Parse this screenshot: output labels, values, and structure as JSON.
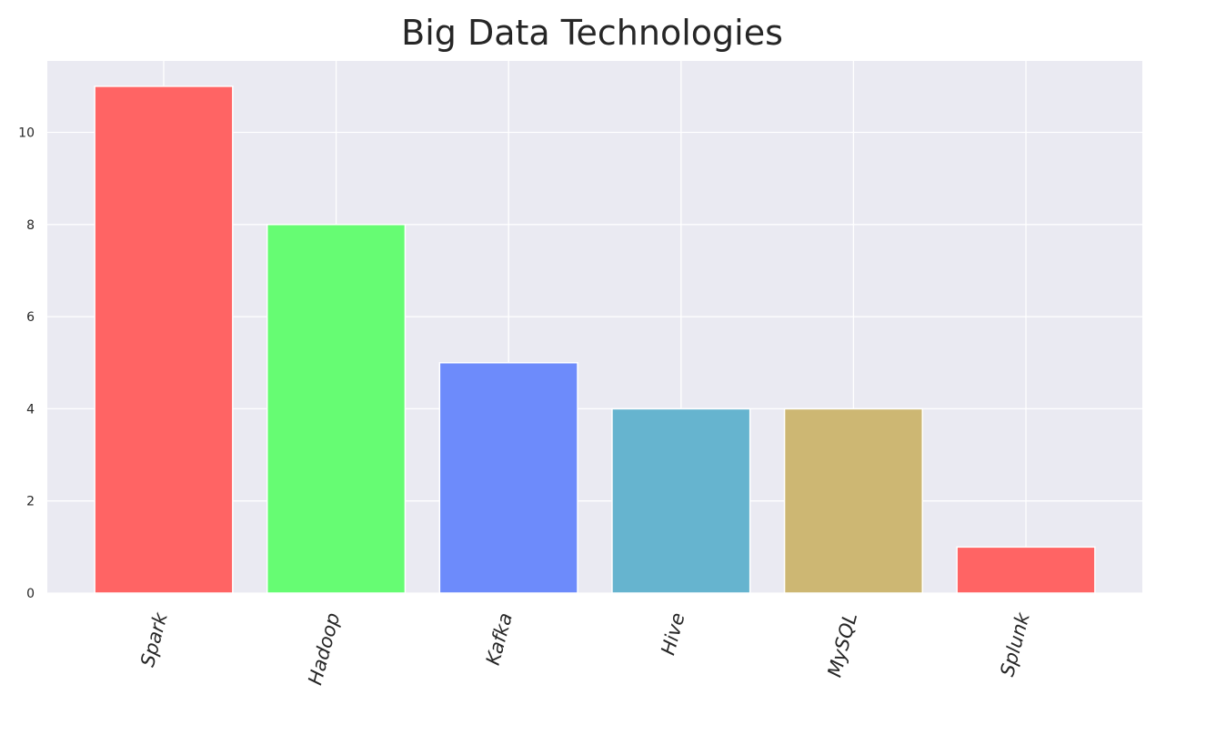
{
  "chart_data": {
    "type": "bar",
    "title": "Big Data Technologies",
    "xlabel": "",
    "ylabel": "",
    "categories": [
      "Spark",
      "Hadoop",
      "Kafka",
      "Hive",
      "MySQL",
      "Splunk"
    ],
    "values": [
      11,
      8,
      5,
      4,
      4,
      1
    ],
    "colors": [
      "#ff6464",
      "#66fc73",
      "#6d8bfb",
      "#66b4cf",
      "#cdb773",
      "#ff6464"
    ],
    "ylim": [
      0,
      11.55
    ],
    "yticks": [
      0,
      2,
      4,
      6,
      8,
      10
    ],
    "grid": true,
    "legend": "none",
    "background": "#eaeaf2"
  }
}
